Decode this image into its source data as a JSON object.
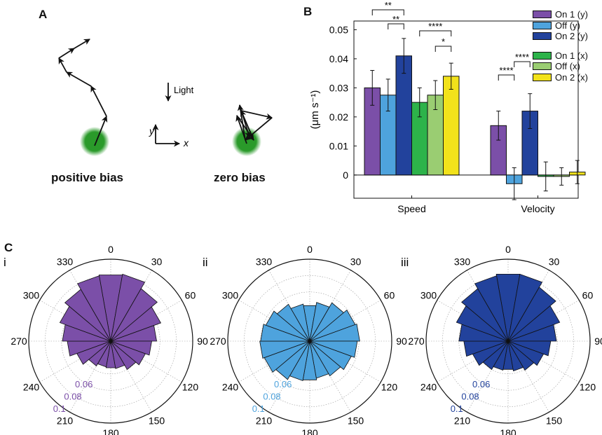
{
  "panel_a": {
    "letter": "A",
    "light_label": "Light",
    "y_axis_label": "y",
    "x_axis_label": "x",
    "caption_left": "positive bias",
    "caption_right": "zero bias",
    "spot_color": "#2a9a2a"
  },
  "panel_b": {
    "letter": "B",
    "legend": [
      {
        "label": "On 1 (y)",
        "color": "#7b4fa8"
      },
      {
        "label": "Off (y)",
        "color": "#4ea3dd"
      },
      {
        "label": "On 2 (y)",
        "color": "#22429c"
      },
      {
        "label": "On 1 (x)",
        "color": "#2db34a"
      },
      {
        "label": "Off (x)",
        "color": "#9acd72"
      },
      {
        "label": "On 2 (x)",
        "color": "#f2e21b"
      }
    ]
  },
  "panel_c": {
    "letter": "C",
    "subpanels": [
      {
        "label": "i",
        "color": "#7b4fa8"
      },
      {
        "label": "ii",
        "color": "#4ea3dd"
      },
      {
        "label": "iii",
        "color": "#22429c"
      }
    ],
    "angle_labels": [
      "0",
      "30",
      "60",
      "90",
      "120",
      "150",
      "180",
      "210",
      "240",
      "270",
      "300",
      "330"
    ],
    "radius_labels": [
      "0.06",
      "0.08",
      "0.1"
    ]
  },
  "chart_data": [
    {
      "type": "bar",
      "categories": [
        "Speed",
        "Velocity"
      ],
      "ylabel": "(μm s⁻¹)",
      "ylim": [
        -0.008,
        0.053
      ],
      "yticks": [
        0,
        0.01,
        0.02,
        0.03,
        0.04,
        0.05
      ],
      "ytick_labels": [
        "0",
        "0.01",
        "0.02",
        "0.03",
        "0.04",
        "0.05"
      ],
      "series": [
        {
          "name": "On 1 (y)",
          "values": [
            0.03,
            0.017
          ],
          "errors": [
            0.006,
            0.005
          ]
        },
        {
          "name": "Off (y)",
          "values": [
            0.0275,
            -0.003
          ],
          "errors": [
            0.0055,
            0.0055
          ]
        },
        {
          "name": "On 2 (y)",
          "values": [
            0.041,
            0.022
          ],
          "errors": [
            0.006,
            0.006
          ]
        },
        {
          "name": "On 1 (x)",
          "values": [
            0.025,
            -0.0005
          ],
          "errors": [
            0.005,
            0.005
          ]
        },
        {
          "name": "Off (x)",
          "values": [
            0.0275,
            -0.0005
          ],
          "errors": [
            0.005,
            0.003
          ]
        },
        {
          "name": "On 2 (x)",
          "values": [
            0.034,
            0.001
          ],
          "errors": [
            0.0045,
            0.004
          ]
        }
      ],
      "significance": [
        {
          "label": "**",
          "from": "On 1 (y) Speed",
          "to": "On 2 (y) Speed"
        },
        {
          "label": "**",
          "from": "Off (y) Speed",
          "to": "On 2 (y) Speed"
        },
        {
          "label": "****",
          "from": "On 1 (x) Speed",
          "to": "On 2 (x) Speed"
        },
        {
          "label": "*",
          "from": "Off (x) Speed",
          "to": "On 2 (x) Speed"
        },
        {
          "label": "****",
          "from": "On 1 (y) Velocity",
          "to": "Off (y) Velocity"
        },
        {
          "label": "****",
          "from": "Off (y) Velocity",
          "to": "On 2 (y) Velocity"
        }
      ]
    },
    {
      "type": "polar-bar",
      "name": "i",
      "angle_step_deg": 20,
      "rmax": 0.1,
      "rings": [
        0.06,
        0.08,
        0.1
      ],
      "values": [
        0.082,
        0.083,
        0.074,
        0.065,
        0.056,
        0.05,
        0.045,
        0.04,
        0.034,
        0.033,
        0.032,
        0.035,
        0.044,
        0.053,
        0.059,
        0.066,
        0.073,
        0.081
      ]
    },
    {
      "type": "polar-bar",
      "name": "ii",
      "angle_step_deg": 20,
      "rmax": 0.1,
      "rings": [
        0.06,
        0.08,
        0.1
      ],
      "values": [
        0.044,
        0.048,
        0.054,
        0.059,
        0.061,
        0.058,
        0.054,
        0.049,
        0.046,
        0.048,
        0.049,
        0.054,
        0.059,
        0.061,
        0.06,
        0.057,
        0.052,
        0.046
      ]
    },
    {
      "type": "polar-bar",
      "name": "iii",
      "angle_step_deg": 20,
      "rmax": 0.1,
      "rings": [
        0.06,
        0.08,
        0.1
      ],
      "values": [
        0.083,
        0.083,
        0.076,
        0.067,
        0.059,
        0.052,
        0.046,
        0.041,
        0.037,
        0.035,
        0.036,
        0.04,
        0.046,
        0.054,
        0.06,
        0.067,
        0.074,
        0.081
      ]
    }
  ]
}
